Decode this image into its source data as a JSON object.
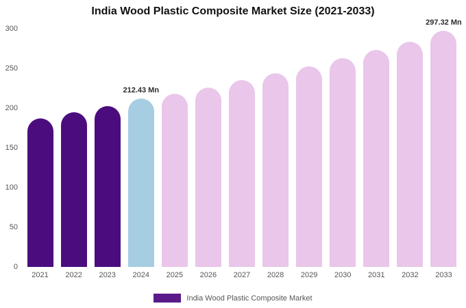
{
  "title": "India Wood Plastic Composite Market Size (2021-2033)",
  "legend": {
    "label": "India Wood Plastic Composite Market",
    "swatch_color": "#5b1a8a"
  },
  "chart_data": {
    "type": "bar",
    "title": "India Wood Plastic Composite Market Size (2021-2033)",
    "categories": [
      "2021",
      "2022",
      "2023",
      "2024",
      "2025",
      "2026",
      "2027",
      "2028",
      "2029",
      "2030",
      "2031",
      "2032",
      "2033"
    ],
    "values": [
      187,
      195,
      203,
      212.43,
      218,
      226,
      235,
      244,
      253,
      263,
      273,
      284,
      297.32
    ],
    "colors": [
      "#4b0d7e",
      "#4b0d7e",
      "#4b0d7e",
      "#a7cde2",
      "#e9c6ea",
      "#e9c6ea",
      "#e9c6ea",
      "#e9c6ea",
      "#e9c6ea",
      "#e9c6ea",
      "#e9c6ea",
      "#e9c6ea",
      "#e9c6ea"
    ],
    "xlabel": "",
    "ylabel": "",
    "ylim": [
      0,
      300
    ],
    "yticks": [
      0,
      50,
      100,
      150,
      200,
      250,
      300
    ],
    "grid": false,
    "legend_position": "bottom",
    "annotations": [
      {
        "index": 3,
        "text": "212.43 Mn"
      },
      {
        "index": 12,
        "text": "297.32 Mn"
      }
    ]
  }
}
